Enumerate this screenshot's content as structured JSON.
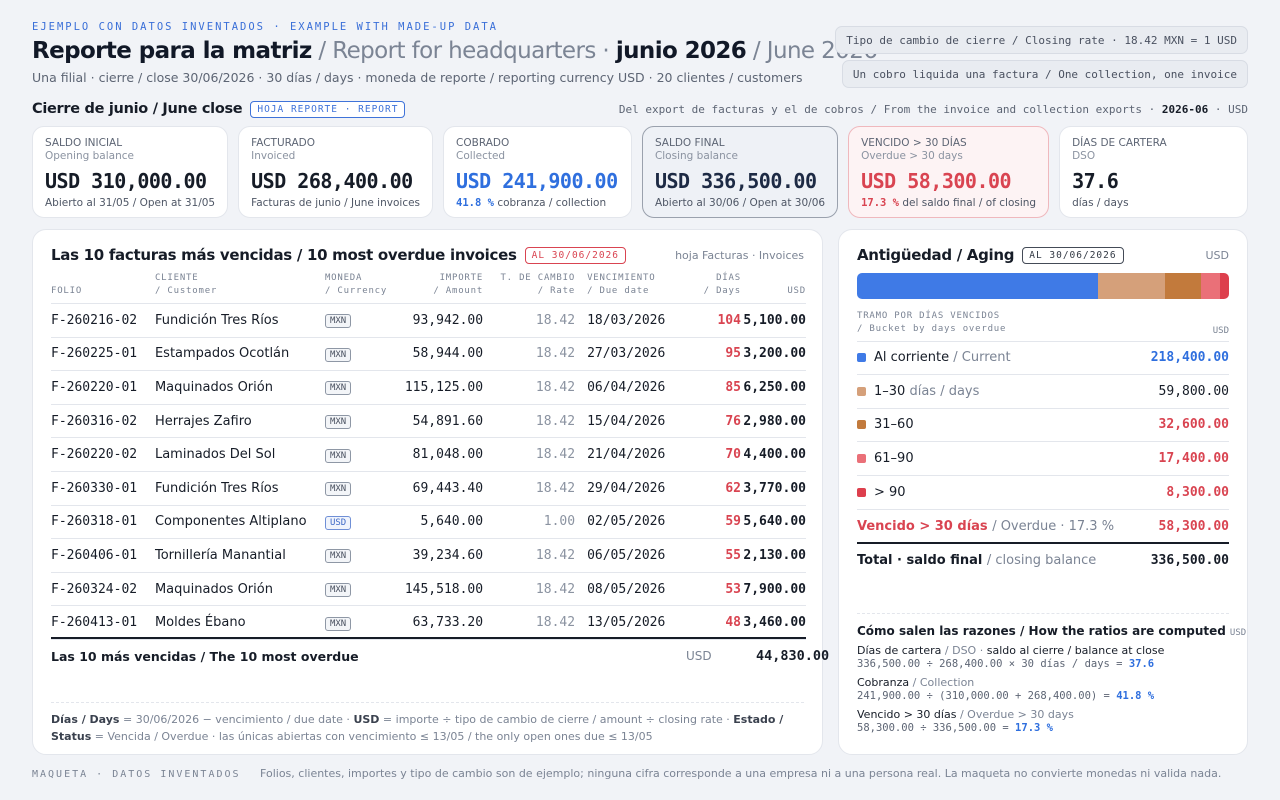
{
  "header": {
    "eyebrow": "EJEMPLO CON DATOS INVENTADOS · EXAMPLE WITH MADE-UP DATA",
    "title_es": "Reporte para la matriz",
    "title_en": "/ Report for headquarters ·",
    "month_es": "junio 2026",
    "month_en": "/ June 2026",
    "subtitle": "Una filial · cierre / close 30/06/2026 · 30 días / days · moneda de reporte / reporting currency USD · 20 clientes / customers",
    "pill_rate": "Tipo de cambio de cierre / Closing rate · 18.42 MXN = 1 USD",
    "pill_rule": "Un cobro liquida una factura / One collection, one invoice"
  },
  "section": {
    "title": "Cierre de junio / June close",
    "tag": "HOJA REPORTE · REPORT",
    "note": "Del export de facturas y el de cobros / From the invoice and collection exports ·",
    "note_period": "2026-06",
    "note_currency": "· USD"
  },
  "kpis": [
    {
      "label": "SALDO INICIAL",
      "sub": "Opening balance",
      "value": "USD 310,000.00",
      "foot": "Abierto al 31/05 / Open at 31/05",
      "pct": ""
    },
    {
      "label": "FACTURADO",
      "sub": "Invoiced",
      "value": "USD 268,400.00",
      "foot": "Facturas de junio / June invoices",
      "pct": ""
    },
    {
      "label": "COBRADO",
      "sub": "Collected",
      "value": "USD 241,900.00",
      "foot": "cobranza / collection",
      "pct": "41.8 %"
    },
    {
      "label": "SALDO FINAL",
      "sub": "Closing balance",
      "value": "USD 336,500.00",
      "foot": "Abierto al 30/06 / Open at 30/06",
      "pct": ""
    },
    {
      "label": "VENCIDO > 30 DÍAS",
      "sub": "Overdue > 30 days",
      "value": "USD 58,300.00",
      "foot": "del saldo final / of closing",
      "pct": "17.3 %"
    },
    {
      "label": "DÍAS DE CARTERA",
      "sub": "DSO",
      "value": "37.6",
      "foot": "días / days",
      "pct": ""
    }
  ],
  "overdue": {
    "title": "Las 10 facturas más vencidas / 10 most overdue invoices",
    "tag": "AL 30/06/2026",
    "hint": "hoja Facturas · Invoices",
    "columns": [
      {
        "es": "FOLIO",
        "en": ""
      },
      {
        "es": "CLIENTE",
        "en": "/ Customer"
      },
      {
        "es": "MONEDA",
        "en": "/ Currency"
      },
      {
        "es": "IMPORTE",
        "en": "/ Amount"
      },
      {
        "es": "T. DE CAMBIO",
        "en": "/ Rate"
      },
      {
        "es": "VENCIMIENTO",
        "en": "/ Due date"
      },
      {
        "es": "DÍAS",
        "en": "/ Days"
      },
      {
        "es": "USD",
        "en": ""
      }
    ],
    "rows": [
      {
        "folio": "F-260216-02",
        "client": "Fundición Tres Ríos",
        "currency": "MXN",
        "amount": "93,942.00",
        "rate": "18.42",
        "due": "18/03/2026",
        "days": "104",
        "usd": "5,100.00"
      },
      {
        "folio": "F-260225-01",
        "client": "Estampados Ocotlán",
        "currency": "MXN",
        "amount": "58,944.00",
        "rate": "18.42",
        "due": "27/03/2026",
        "days": "95",
        "usd": "3,200.00"
      },
      {
        "folio": "F-260220-01",
        "client": "Maquinados Orión",
        "currency": "MXN",
        "amount": "115,125.00",
        "rate": "18.42",
        "due": "06/04/2026",
        "days": "85",
        "usd": "6,250.00"
      },
      {
        "folio": "F-260316-02",
        "client": "Herrajes Zafiro",
        "currency": "MXN",
        "amount": "54,891.60",
        "rate": "18.42",
        "due": "15/04/2026",
        "days": "76",
        "usd": "2,980.00"
      },
      {
        "folio": "F-260220-02",
        "client": "Laminados Del Sol",
        "currency": "MXN",
        "amount": "81,048.00",
        "rate": "18.42",
        "due": "21/04/2026",
        "days": "70",
        "usd": "4,400.00"
      },
      {
        "folio": "F-260330-01",
        "client": "Fundición Tres Ríos",
        "currency": "MXN",
        "amount": "69,443.40",
        "rate": "18.42",
        "due": "29/04/2026",
        "days": "62",
        "usd": "3,770.00"
      },
      {
        "folio": "F-260318-01",
        "client": "Componentes Altiplano",
        "currency": "USD",
        "amount": "5,640.00",
        "rate": "1.00",
        "due": "02/05/2026",
        "days": "59",
        "usd": "5,640.00"
      },
      {
        "folio": "F-260406-01",
        "client": "Tornillería Manantial",
        "currency": "MXN",
        "amount": "39,234.60",
        "rate": "18.42",
        "due": "06/05/2026",
        "days": "55",
        "usd": "2,130.00"
      },
      {
        "folio": "F-260324-02",
        "client": "Maquinados Orión",
        "currency": "MXN",
        "amount": "145,518.00",
        "rate": "18.42",
        "due": "08/05/2026",
        "days": "53",
        "usd": "7,900.00"
      },
      {
        "folio": "F-260413-01",
        "client": "Moldes Ébano",
        "currency": "MXN",
        "amount": "63,733.20",
        "rate": "18.42",
        "due": "13/05/2026",
        "days": "48",
        "usd": "3,460.00"
      }
    ],
    "total_label": "Las 10 más vencidas / The 10 most overdue",
    "total_currency": "USD",
    "total_value": "44,830.00",
    "legend": {
      "k1": "Días / Days",
      "t1": " = 30/06/2026 − vencimiento / due date · ",
      "k2": "USD",
      "t2": " = importe ÷ tipo de cambio de cierre / amount ÷ closing rate · ",
      "k3": "Estado / Status",
      "t3": " = Vencida / Overdue · las únicas abiertas con vencimiento ≤ 13/05 / the only open ones due ≤ 13/05"
    }
  },
  "aging": {
    "title": "Antigüedad / Aging",
    "tag": "AL 30/06/2026",
    "currency": "USD",
    "bar_values": [
      218400,
      59800,
      32600,
      17400,
      8300
    ],
    "bar_colors": [
      "#3f7ae6",
      "#d5a07a",
      "#c27a3c",
      "#ea7078",
      "#dd3f4d"
    ],
    "col_es": "TRAMO POR DÍAS VENCIDOS",
    "col_en": "/ Bucket by days overdue",
    "col_usd": "USD",
    "buckets": [
      {
        "name": "Al corriente",
        "name_en": "/ Current",
        "value": "218,400.00",
        "color": "#3f7ae6",
        "tone": "blue"
      },
      {
        "name": "1–30",
        "name_en": "días / days",
        "value": "59,800.00",
        "color": "#d5a07a",
        "tone": "plain"
      },
      {
        "name": "31–60",
        "name_en": "",
        "value": "32,600.00",
        "color": "#c27a3c",
        "tone": "red"
      },
      {
        "name": "61–90",
        "name_en": "",
        "value": "17,400.00",
        "color": "#ea7078",
        "tone": "red"
      },
      {
        "name": "> 90",
        "name_en": "",
        "value": "8,300.00",
        "color": "#dd3f4d",
        "tone": "red"
      }
    ],
    "overdue_label": "Vencido > 30 días",
    "overdue_label_en": "/ Overdue · 17.3 %",
    "overdue_value": "58,300.00",
    "total_label": "Total · saldo final",
    "total_label_en": "/ closing balance",
    "total_value": "336,500.00"
  },
  "ratios": {
    "title": "Cómo salen las razones / How the ratios are computed",
    "unit": "USD",
    "items": [
      {
        "name": "Días de cartera",
        "name_en": "/ DSO ·",
        "desc": "saldo al cierre / balance at close",
        "formula": "336,500.00 ÷ 268,400.00 × 30 días / days =",
        "result": "37.6"
      },
      {
        "name": "Cobranza",
        "name_en": "/ Collection",
        "desc": "",
        "formula": "241,900.00 ÷ (310,000.00 + 268,400.00) =",
        "result": "41.8 %"
      },
      {
        "name": "Vencido > 30 días",
        "name_en": "/ Overdue > 30 days",
        "desc": "",
        "formula": "58,300.00 ÷ 336,500.00 =",
        "result": "17.3 %"
      }
    ]
  },
  "footer": {
    "mark": "MAQUETA · DATOS INVENTADOS",
    "text": "Folios, clientes, importes y tipo de cambio son de ejemplo; ninguna cifra corresponde a una empresa ni a una persona real. La maqueta no convierte monedas ni valida nada."
  }
}
